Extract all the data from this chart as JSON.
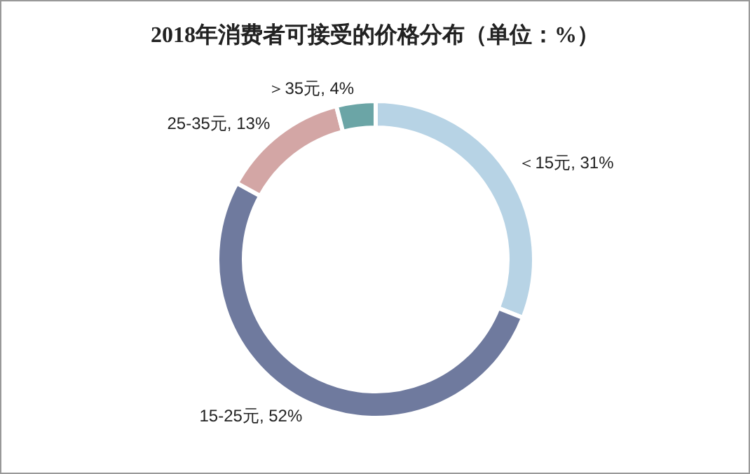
{
  "chart_data": {
    "type": "donut",
    "title": "2018年消费者可接受的价格分布（单位：%）",
    "categories": [
      "＜15元",
      "15-25元",
      "25-35元",
      "＞35元"
    ],
    "value_labels": [
      ", 31%",
      ", 52%",
      ", 13%",
      ", 4%"
    ],
    "values": [
      31,
      52,
      13,
      4
    ],
    "colors": [
      "#b7d3e5",
      "#6f7a9e",
      "#d3a6a5",
      "#6ba5a6"
    ],
    "legend": false
  }
}
